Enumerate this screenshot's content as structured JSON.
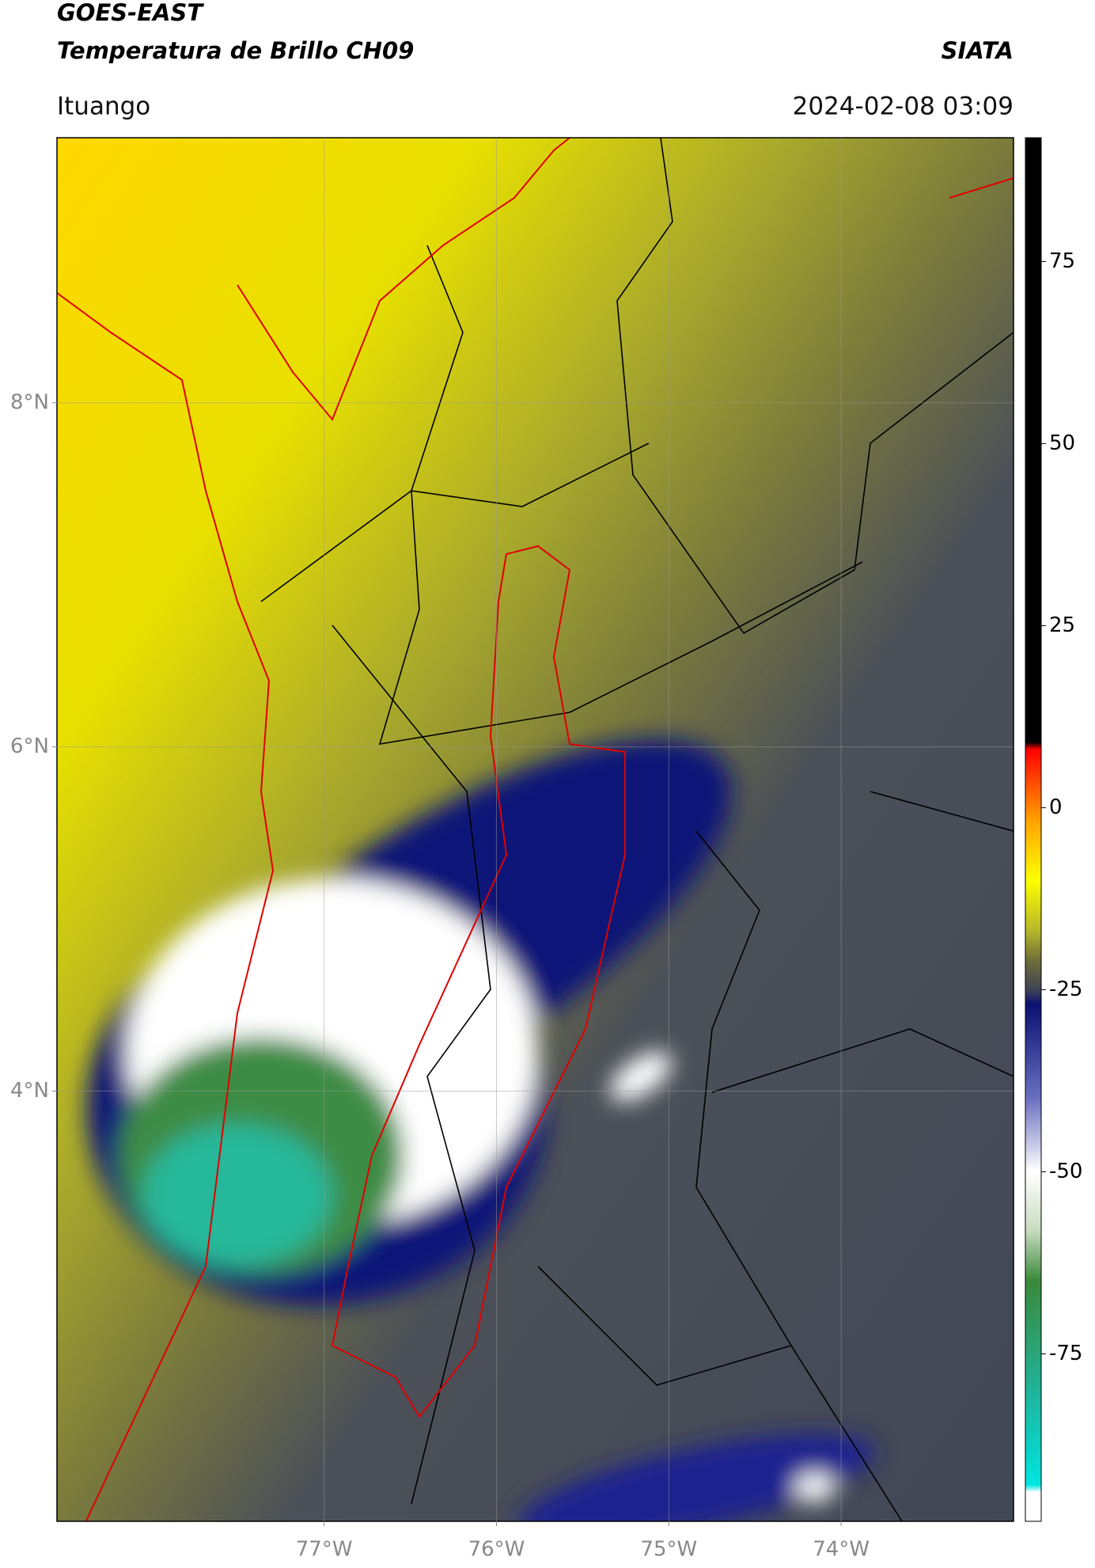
{
  "header": {
    "title_line1": "GOES-EAST",
    "title_line2": "Temperatura de Brillo CH09",
    "source": "SIATA",
    "region": "Ituango",
    "timestamp": "2024-02-08 03:09"
  },
  "map": {
    "xlim": [
      -78.55,
      -73.0
    ],
    "ylim": [
      1.5,
      9.54
    ],
    "grid": true,
    "lat_ticks": [
      {
        "value": 8,
        "label": "8°N"
      },
      {
        "value": 6,
        "label": "6°N"
      },
      {
        "value": 4,
        "label": "4°N"
      }
    ],
    "lon_ticks": [
      {
        "value": -77,
        "label": "77°W"
      },
      {
        "value": -76,
        "label": "76°W"
      },
      {
        "value": -75,
        "label": "75°W"
      },
      {
        "value": -74,
        "label": "74°W"
      }
    ]
  },
  "colorbar": {
    "lim": [
      -98,
      92
    ],
    "ticks": [
      75,
      50,
      25,
      0,
      -25,
      -50,
      -75
    ],
    "colormap": [
      [
        -98,
        "#ffffff"
      ],
      [
        -94,
        "#ffffff"
      ],
      [
        -93,
        "#00e5e0"
      ],
      [
        -80,
        "#20b39a"
      ],
      [
        -65,
        "#3a8a3a"
      ],
      [
        -58,
        "#c9dcc0"
      ],
      [
        -50,
        "#ffffff"
      ],
      [
        -40,
        "#6a70c0"
      ],
      [
        -27,
        "#0a1070"
      ],
      [
        -25,
        "#3e4452"
      ],
      [
        -21,
        "#6e6e3a"
      ],
      [
        -17,
        "#b5b52a"
      ],
      [
        -10,
        "#ffff00"
      ],
      [
        -2,
        "#ffa500"
      ],
      [
        8,
        "#ff0000"
      ],
      [
        9,
        "#000000"
      ],
      [
        92,
        "#000000"
      ]
    ]
  }
}
